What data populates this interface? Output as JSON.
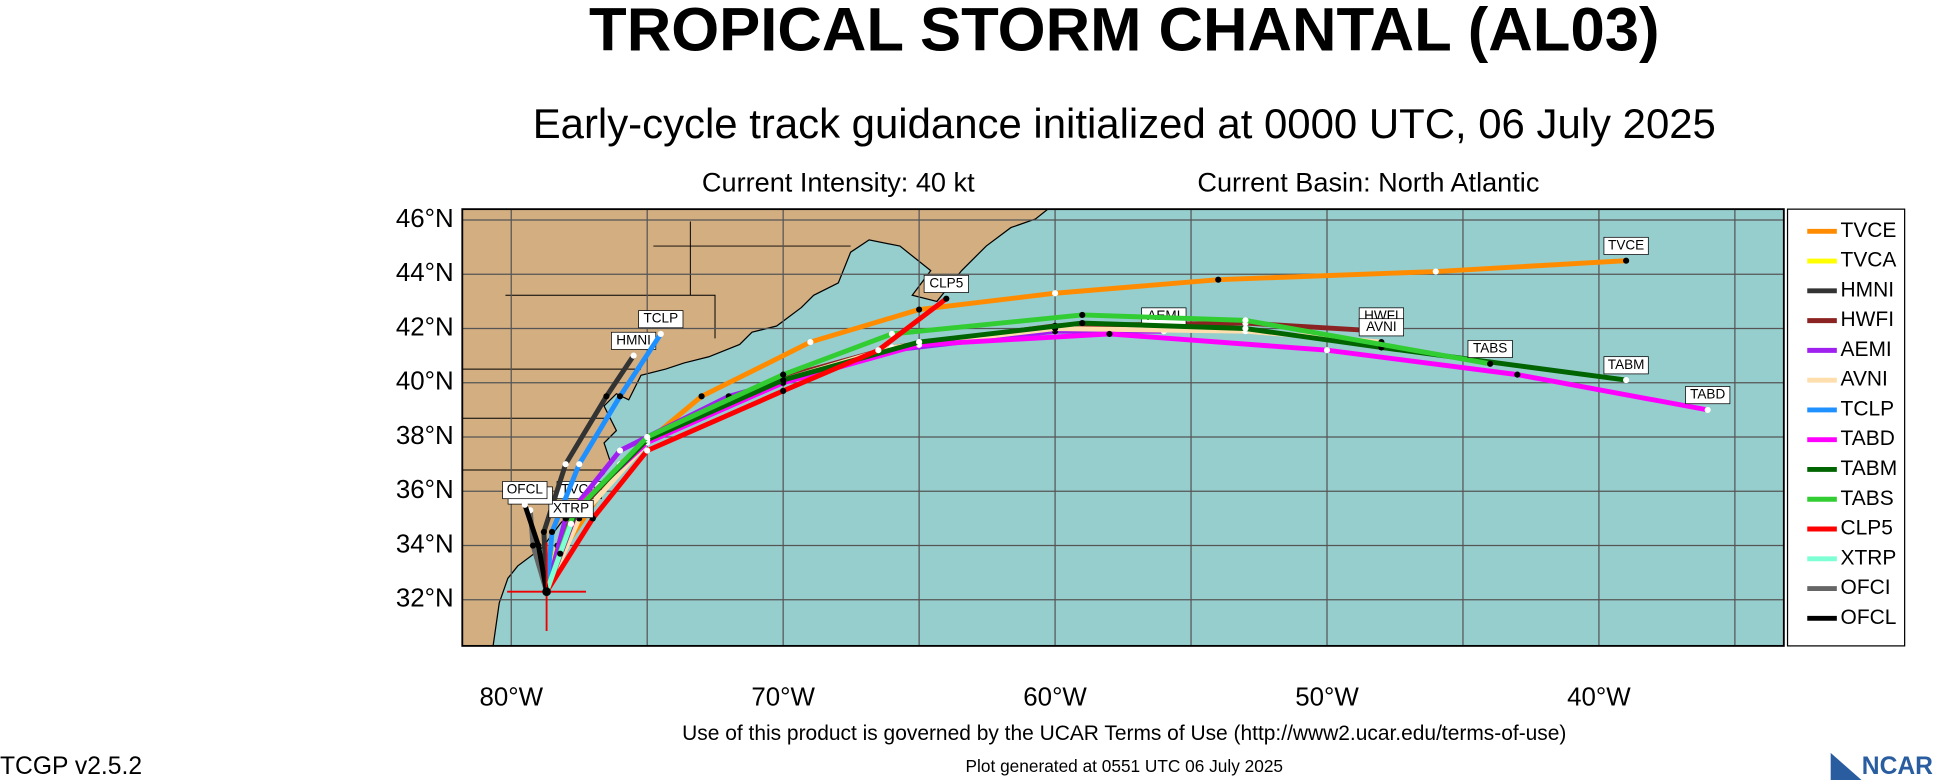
{
  "header": {
    "title": "TROPICAL STORM CHANTAL (AL03)",
    "subtitle": "Early-cycle track guidance initialized at 0000 UTC, 06 July 2025",
    "intensity": "Current Intensity: 40 kt",
    "basin": "Current Basin: North Atlantic"
  },
  "map": {
    "lonlim": [
      -81.8,
      -33.2
    ],
    "latlim": [
      30.3,
      46.4
    ],
    "lonticks": [
      {
        "value": -80,
        "label": "80°W"
      },
      {
        "value": -70,
        "label": "70°W"
      },
      {
        "value": -60,
        "label": "60°W"
      },
      {
        "value": -50,
        "label": "50°W"
      },
      {
        "value": -40,
        "label": "40°W"
      }
    ],
    "latticks": [
      {
        "value": 32,
        "label": "32°N"
      },
      {
        "value": 34,
        "label": "34°N"
      },
      {
        "value": 36,
        "label": "36°N"
      },
      {
        "value": 38,
        "label": "38°N"
      },
      {
        "value": 40,
        "label": "40°N"
      },
      {
        "value": 42,
        "label": "42°N"
      },
      {
        "value": 44,
        "label": "44°N"
      },
      {
        "value": 46,
        "label": "46°N"
      }
    ],
    "lon_grid": [
      -80,
      -75,
      -70,
      -65,
      -60,
      -55,
      -50,
      -45,
      -40,
      -35
    ],
    "tracks": [
      {
        "name": "TVCE",
        "color": "#ff8c00",
        "lon": [
          -78.7,
          -78,
          -76,
          -73,
          -69,
          -65,
          -60,
          -54,
          -46,
          -39
        ],
        "lat": [
          32.3,
          34,
          37,
          39.5,
          41.5,
          42.7,
          43.3,
          43.8,
          44.1,
          44.5
        ]
      },
      {
        "name": "TVCA",
        "color": "#ffff00",
        "lon": [
          -78.7,
          -78.3,
          -77.5
        ],
        "lat": [
          32.3,
          34,
          35.5
        ]
      },
      {
        "name": "HMNI",
        "color": "#333333",
        "lon": [
          -78.7,
          -78.8,
          -78,
          -76.5,
          -75.5
        ],
        "lat": [
          32.3,
          34.5,
          37,
          39.5,
          41
        ]
      },
      {
        "name": "HWFI",
        "color": "#8b2323",
        "lon": [
          -78.7,
          -77.8,
          -75,
          -70,
          -66,
          -60,
          -53,
          -48
        ],
        "lat": [
          32.3,
          35,
          38,
          40.2,
          41.3,
          42.1,
          42.2,
          41.9
        ]
      },
      {
        "name": "AEMI",
        "color": "#a020f0",
        "lon": [
          -78.7,
          -78,
          -76,
          -72,
          -66,
          -60,
          -56
        ],
        "lat": [
          32.3,
          35,
          37.5,
          39.5,
          41.2,
          41.9,
          41.9
        ]
      },
      {
        "name": "AVNI",
        "color": "#ffdead",
        "lon": [
          -78.7,
          -77.5,
          -75,
          -71,
          -66,
          -60,
          -53,
          -48
        ],
        "lat": [
          32.3,
          35,
          37.8,
          39.8,
          41.3,
          42,
          41.9,
          41.5
        ]
      },
      {
        "name": "TCLP",
        "color": "#1e90ff",
        "lon": [
          -78.7,
          -78.5,
          -77.5,
          -76,
          -74.5
        ],
        "lat": [
          32.3,
          34.5,
          37,
          39.5,
          41.8
        ]
      },
      {
        "name": "TABD",
        "color": "#ff00ff",
        "lon": [
          -78.7,
          -77.5,
          -75,
          -70,
          -65,
          -58,
          -50,
          -43,
          -36
        ],
        "lat": [
          32.3,
          35.5,
          37.8,
          40,
          41.4,
          41.8,
          41.2,
          40.3,
          39
        ]
      },
      {
        "name": "TABM",
        "color": "#006400",
        "lon": [
          -78.7,
          -77.6,
          -75,
          -70,
          -65,
          -59,
          -53,
          -48,
          -39
        ],
        "lat": [
          32.3,
          35.3,
          37.9,
          40.1,
          41.5,
          42.2,
          42,
          41.3,
          40.1
        ]
      },
      {
        "name": "TABS",
        "color": "#32cd32",
        "lon": [
          -78.7,
          -77.7,
          -75,
          -70,
          -66,
          -59,
          -53,
          -44
        ],
        "lat": [
          32.3,
          35.2,
          38,
          40.3,
          41.8,
          42.5,
          42.3,
          40.7
        ]
      },
      {
        "name": "CLP5",
        "color": "#ff0000",
        "lon": [
          -78.7,
          -77,
          -75,
          -70,
          -66.5,
          -64
        ],
        "lat": [
          32.3,
          35,
          37.5,
          39.7,
          41.2,
          43.1
        ]
      },
      {
        "name": "XTRP",
        "color": "#7fffd4",
        "lon": [
          -78.7,
          -78.2,
          -77.8
        ],
        "lat": [
          32.3,
          33.7,
          34.8
        ]
      },
      {
        "name": "OFCI",
        "color": "#666666",
        "lon": [
          -78.7,
          -79.2,
          -79.3
        ],
        "lat": [
          32.3,
          34,
          35.3
        ]
      },
      {
        "name": "OFCL",
        "color": "#000000",
        "lon": [
          -78.7,
          -79,
          -79.5
        ],
        "lat": [
          32.3,
          34,
          35.5
        ]
      }
    ]
  },
  "footer": {
    "version": "TCGP v2.5.2",
    "terms": "Use of this product is governed by the UCAR Terms of Use (http://www2.ucar.edu/terms-of-use)",
    "generated": "Plot generated at 0551 UTC   06 July 2025",
    "logo": "NCAR"
  }
}
